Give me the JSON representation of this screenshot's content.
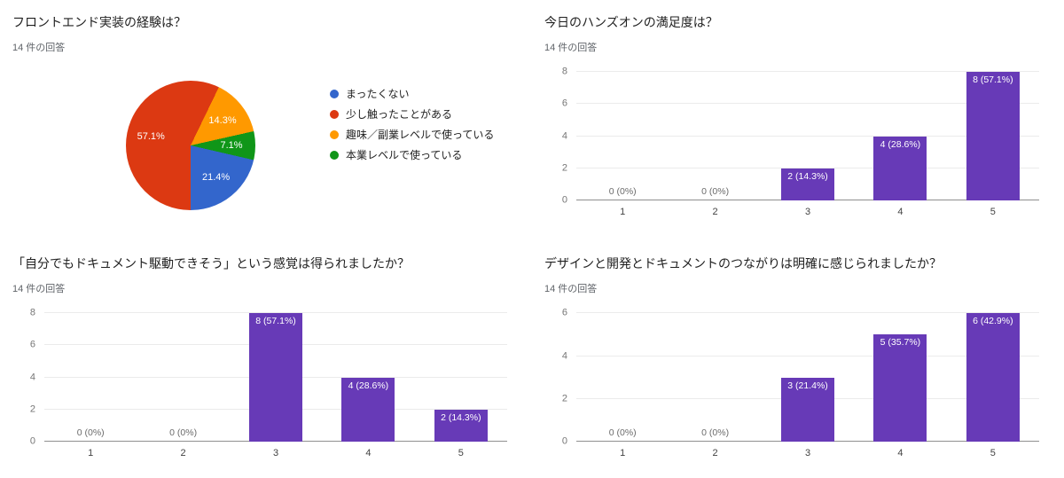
{
  "panels": [
    {
      "title": "フロントエンド実装の経験は？",
      "responses": "14 件の回答",
      "chart_data": {
        "type": "pie",
        "total_responses": 14,
        "slices": [
          {
            "label": "まったくない",
            "value": 3,
            "pct_label": "21.4%",
            "color": "#3366cc"
          },
          {
            "label": "少し触ったことがある",
            "value": 8,
            "pct_label": "57.1%",
            "color": "#dc3912"
          },
          {
            "label": "趣味／副業レベルで使っている",
            "value": 2,
            "pct_label": "14.3%",
            "color": "#ff9900"
          },
          {
            "label": "本業レベルで使っている",
            "value": 1,
            "pct_label": "7.1%",
            "color": "#109618"
          }
        ],
        "legend_position": "right"
      }
    },
    {
      "title": "今日のハンズオンの満足度は？",
      "responses": "14 件の回答",
      "chart_data": {
        "type": "bar",
        "categories": [
          "1",
          "2",
          "3",
          "4",
          "5"
        ],
        "values": [
          0,
          0,
          2,
          4,
          8
        ],
        "value_labels": [
          "0 (0%)",
          "0 (0%)",
          "2 (14.3%)",
          "4 (28.6%)",
          "8 (57.1%)"
        ],
        "ymax": 8,
        "yticks": [
          0,
          2,
          4,
          6,
          8
        ],
        "bar_color": "#673ab7",
        "grid": true
      }
    },
    {
      "title": "「自分でもドキュメント駆動できそう」という感覚は得られましたか？",
      "responses": "14 件の回答",
      "chart_data": {
        "type": "bar",
        "categories": [
          "1",
          "2",
          "3",
          "4",
          "5"
        ],
        "values": [
          0,
          0,
          8,
          4,
          2
        ],
        "value_labels": [
          "0 (0%)",
          "0 (0%)",
          "8 (57.1%)",
          "4 (28.6%)",
          "2 (14.3%)"
        ],
        "ymax": 8,
        "yticks": [
          0,
          2,
          4,
          6,
          8
        ],
        "bar_color": "#673ab7",
        "grid": true
      }
    },
    {
      "title": "デザインと開発とドキュメントのつながりは明確に感じられましたか？",
      "responses": "14 件の回答",
      "chart_data": {
        "type": "bar",
        "categories": [
          "1",
          "2",
          "3",
          "4",
          "5"
        ],
        "values": [
          0,
          0,
          3,
          5,
          6
        ],
        "value_labels": [
          "0 (0%)",
          "0 (0%)",
          "3 (21.4%)",
          "5 (35.7%)",
          "6 (42.9%)"
        ],
        "ymax": 6,
        "yticks": [
          0,
          2,
          4,
          6
        ],
        "bar_color": "#673ab7",
        "grid": true
      }
    }
  ]
}
